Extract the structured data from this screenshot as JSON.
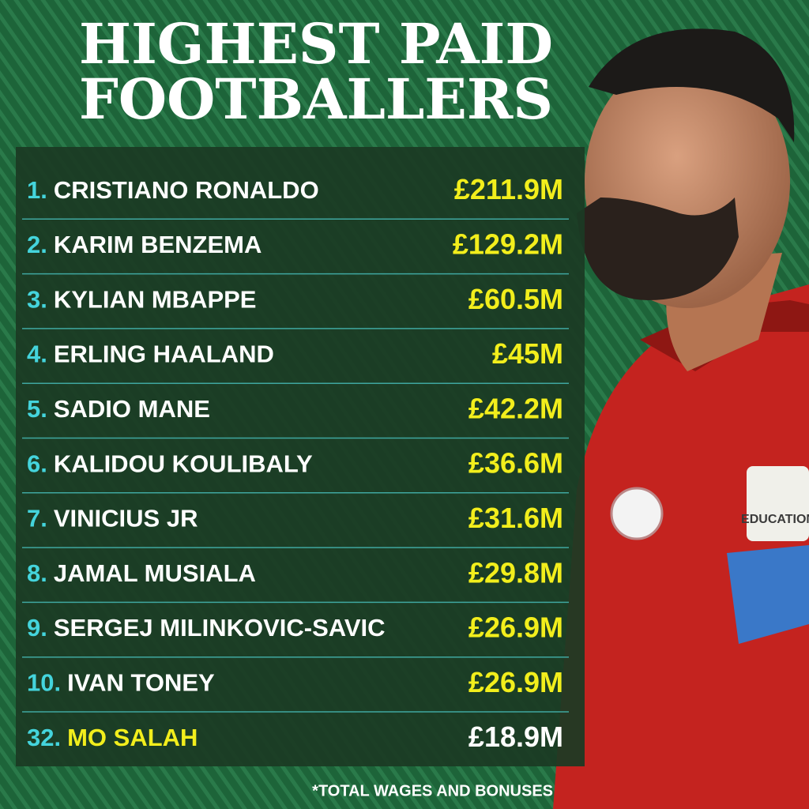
{
  "header": {
    "title_lines": [
      "HIGHEST PAID",
      "FOOTBALLERS"
    ]
  },
  "table": {
    "rows": [
      [
        "1.",
        "CRISTIANO RONALDO",
        "£211.9M"
      ],
      [
        "2.",
        "KARIM BENZEMA",
        "£129.2M"
      ],
      [
        "3.",
        "KYLIAN MBAPPE",
        "£60.5M"
      ],
      [
        "4.",
        "ERLING HAALAND",
        "£45M"
      ],
      [
        "5.",
        "SADIO MANE",
        "£42.2M"
      ],
      [
        "6.",
        "KALIDOU KOULIBALY",
        "£36.6M"
      ],
      [
        "7.",
        "VINICIUS JR",
        "£31.6M"
      ],
      [
        "8.",
        "JAMAL MUSIALA",
        "£29.8M"
      ],
      [
        "9.",
        "SERGEJ MILINKOVIC-SAVIC",
        "£26.9M"
      ],
      [
        "10.",
        "IVAN TONEY",
        "£26.9M"
      ],
      [
        "32.",
        "MO SALAH",
        "£18.9M"
      ]
    ]
  },
  "photo": {
    "badge_text": "EDUCATION"
  },
  "footnote": "*TOTAL WAGES AND BONUSES"
}
